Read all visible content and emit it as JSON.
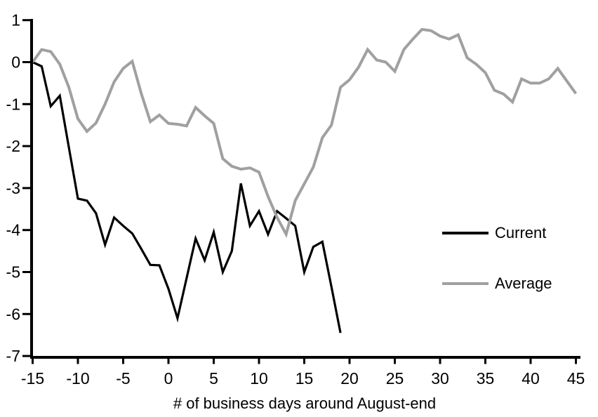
{
  "chart_data": {
    "type": "line",
    "title": "",
    "xlabel": "# of business days around August-end",
    "ylabel": "",
    "xlim": [
      -15,
      45
    ],
    "ylim": [
      -7,
      1
    ],
    "grid": false,
    "legend_position": "middle-right",
    "axis_color": "#000000",
    "x_ticks": [
      -15,
      -10,
      -5,
      0,
      5,
      10,
      15,
      20,
      25,
      30,
      35,
      40,
      45
    ],
    "y_ticks": [
      1,
      0,
      -1,
      -2,
      -3,
      -4,
      -5,
      -6,
      -7
    ],
    "series": [
      {
        "name": "Current",
        "color": "#000000",
        "stroke_width": 3.2,
        "x": [
          -15,
          -14,
          -13,
          -12,
          -11,
          -10,
          -9,
          -8,
          -7,
          -6,
          -5,
          -4,
          -3,
          -2,
          -1,
          0,
          1,
          2,
          3,
          4,
          5,
          6,
          7,
          8,
          9,
          10,
          11,
          12,
          13,
          14,
          15,
          16,
          17,
          18,
          19
        ],
        "values": [
          0,
          -0.1,
          -1.05,
          -0.8,
          -2.03,
          -3.25,
          -3.3,
          -3.6,
          -4.35,
          -3.7,
          -3.9,
          -4.08,
          -4.45,
          -4.83,
          -4.84,
          -5.4,
          -6.1,
          -5.15,
          -4.2,
          -4.72,
          -4.05,
          -5.0,
          -4.5,
          -2.89,
          -3.9,
          -3.55,
          -4.1,
          -3.55,
          -3.72,
          -3.9,
          -5.0,
          -4.4,
          -4.28,
          -5.35,
          -6.45
        ]
      },
      {
        "name": "Average",
        "color": "#A0A0A0",
        "stroke_width": 4,
        "x": [
          -15,
          -14,
          -13,
          -12,
          -11,
          -10,
          -9,
          -8,
          -7,
          -6,
          -5,
          -4,
          -3,
          -2,
          -1,
          0,
          1,
          2,
          3,
          4,
          5,
          6,
          7,
          8,
          9,
          10,
          11,
          12,
          13,
          14,
          15,
          16,
          17,
          18,
          19,
          20,
          21,
          22,
          23,
          24,
          25,
          26,
          27,
          28,
          29,
          30,
          31,
          32,
          33,
          34,
          35,
          36,
          37,
          38,
          39,
          40,
          41,
          42,
          43,
          44,
          45
        ],
        "values": [
          0,
          0.3,
          0.25,
          -0.05,
          -0.6,
          -1.35,
          -1.65,
          -1.45,
          -1.0,
          -0.47,
          -0.15,
          0.02,
          -0.75,
          -1.42,
          -1.26,
          -1.46,
          -1.48,
          -1.52,
          -1.08,
          -1.28,
          -1.46,
          -2.3,
          -2.48,
          -2.55,
          -2.52,
          -2.62,
          -3.2,
          -3.7,
          -4.1,
          -3.3,
          -2.9,
          -2.5,
          -1.8,
          -1.5,
          -0.6,
          -0.42,
          -0.12,
          0.3,
          0.05,
          0.0,
          -0.22,
          0.3,
          0.55,
          0.78,
          0.75,
          0.62,
          0.55,
          0.65,
          0.1,
          -0.05,
          -0.25,
          -0.67,
          -0.76,
          -0.95,
          -0.4,
          -0.5,
          -0.5,
          -0.4,
          -0.15,
          -0.45,
          -0.75
        ]
      }
    ]
  }
}
